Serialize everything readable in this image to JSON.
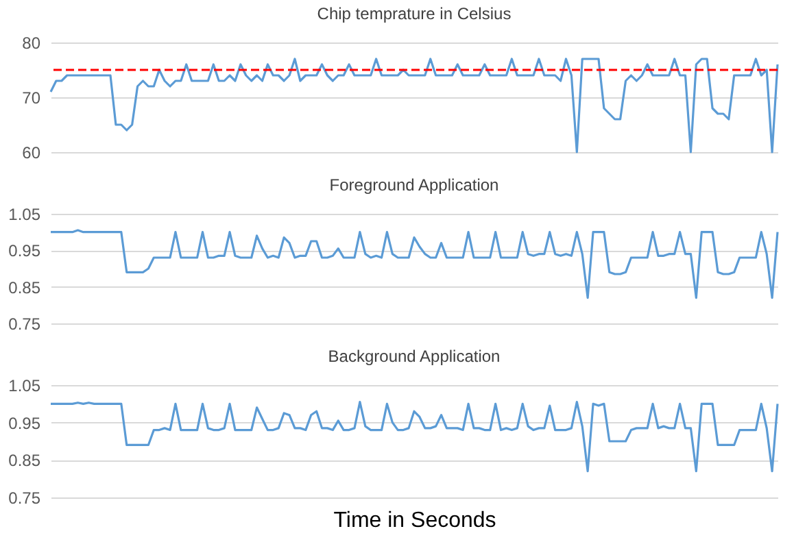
{
  "chart_data": [
    {
      "type": "line",
      "title": "Chip temprature in Celsius",
      "categories": [
        null,
        null,
        null,
        null,
        null,
        null,
        null,
        null,
        null,
        null,
        null,
        null,
        null,
        null,
        null,
        null,
        null,
        null,
        null,
        null,
        null,
        null,
        null,
        null,
        null,
        null,
        null,
        null,
        null,
        null,
        null,
        null,
        null,
        null,
        null,
        null,
        null,
        null,
        null,
        null,
        null,
        null,
        null,
        null,
        null,
        null,
        null,
        null,
        null,
        null,
        null,
        null,
        null,
        null,
        null,
        null,
        null,
        null,
        null,
        null,
        null,
        null,
        null,
        null,
        null,
        null,
        null,
        null,
        null,
        null,
        null,
        null,
        null,
        null,
        null,
        null,
        null,
        null,
        null,
        null,
        null,
        null,
        null,
        null,
        null,
        null,
        null,
        null,
        null,
        null,
        null,
        null,
        null,
        null,
        null,
        null,
        null,
        null,
        null,
        null,
        null,
        null,
        null,
        null,
        null,
        null,
        null,
        null,
        null,
        null,
        null,
        null,
        null,
        null,
        null,
        null,
        null,
        null,
        null,
        null,
        null,
        null,
        null,
        null,
        null,
        null,
        null,
        null,
        null,
        null,
        null,
        null,
        null,
        null,
        null
      ],
      "series": [
        {
          "color": "#5b9bd5",
          "values": [
            71,
            73,
            73,
            74,
            74,
            74,
            74,
            74,
            74,
            74,
            74,
            74,
            65,
            65,
            64,
            65,
            72,
            73,
            72,
            72,
            75,
            73,
            72,
            73,
            73,
            76,
            73,
            73,
            73,
            73,
            76,
            73,
            73,
            74,
            73,
            76,
            74,
            73,
            74,
            73,
            76,
            74,
            74,
            73,
            74,
            77,
            73,
            74,
            74,
            74,
            76,
            74,
            73,
            74,
            74,
            76,
            74,
            74,
            74,
            74,
            77,
            74,
            74,
            74,
            74,
            75,
            74,
            74,
            74,
            74,
            77,
            74,
            74,
            74,
            74,
            76,
            74,
            74,
            74,
            74,
            76,
            74,
            74,
            74,
            74,
            77,
            74,
            74,
            74,
            74,
            77,
            74,
            74,
            74,
            73,
            77,
            74,
            60,
            77,
            77,
            77,
            77,
            68,
            67,
            66,
            66,
            73,
            74,
            73,
            74,
            76,
            74,
            74,
            74,
            74,
            77,
            74,
            74,
            60,
            76,
            77,
            77,
            68,
            67,
            67,
            66,
            74,
            74,
            74,
            74,
            77,
            74,
            75,
            60,
            76
          ]
        }
      ],
      "ylim": [
        60,
        80
      ],
      "yticks": [
        60,
        70,
        80
      ],
      "grid": "y",
      "tick_labels": "y",
      "line_style": "solid",
      "ref_lines": [
        {
          "axis": "y",
          "value": 75,
          "color": "#ff0000",
          "line_style": "dashed"
        }
      ]
    },
    {
      "type": "line",
      "title": "Foreground Application",
      "categories": [
        null,
        null,
        null,
        null,
        null,
        null,
        null,
        null,
        null,
        null,
        null,
        null,
        null,
        null,
        null,
        null,
        null,
        null,
        null,
        null,
        null,
        null,
        null,
        null,
        null,
        null,
        null,
        null,
        null,
        null,
        null,
        null,
        null,
        null,
        null,
        null,
        null,
        null,
        null,
        null,
        null,
        null,
        null,
        null,
        null,
        null,
        null,
        null,
        null,
        null,
        null,
        null,
        null,
        null,
        null,
        null,
        null,
        null,
        null,
        null,
        null,
        null,
        null,
        null,
        null,
        null,
        null,
        null,
        null,
        null,
        null,
        null,
        null,
        null,
        null,
        null,
        null,
        null,
        null,
        null,
        null,
        null,
        null,
        null,
        null,
        null,
        null,
        null,
        null,
        null,
        null,
        null,
        null,
        null,
        null,
        null,
        null,
        null,
        null,
        null,
        null,
        null,
        null,
        null,
        null,
        null,
        null,
        null,
        null,
        null,
        null,
        null,
        null,
        null,
        null,
        null,
        null,
        null,
        null,
        null,
        null,
        null,
        null,
        null,
        null,
        null,
        null,
        null,
        null,
        null,
        null,
        null,
        null,
        null,
        null
      ],
      "series": [
        {
          "color": "#5b9bd5",
          "values": [
            1,
            1,
            1,
            1,
            1,
            1.005,
            1,
            1,
            1,
            1,
            1,
            1,
            1,
            1,
            0.89,
            0.89,
            0.89,
            0.89,
            0.9,
            0.93,
            0.93,
            0.93,
            0.93,
            1,
            0.93,
            0.93,
            0.93,
            0.93,
            1,
            0.93,
            0.93,
            0.935,
            0.935,
            1,
            0.935,
            0.93,
            0.93,
            0.93,
            0.99,
            0.955,
            0.93,
            0.935,
            0.93,
            0.985,
            0.97,
            0.93,
            0.935,
            0.935,
            0.975,
            0.975,
            0.93,
            0.93,
            0.935,
            0.955,
            0.93,
            0.93,
            0.93,
            1,
            0.94,
            0.93,
            0.935,
            0.93,
            1,
            0.94,
            0.93,
            0.93,
            0.93,
            0.985,
            0.96,
            0.94,
            0.93,
            0.93,
            0.97,
            0.93,
            0.93,
            0.93,
            0.93,
            1,
            0.93,
            0.93,
            0.93,
            0.93,
            1,
            0.93,
            0.93,
            0.93,
            0.93,
            1,
            0.94,
            0.935,
            0.94,
            0.94,
            1,
            0.94,
            0.935,
            0.94,
            0.935,
            1,
            0.94,
            0.82,
            1,
            1,
            1,
            0.89,
            0.885,
            0.885,
            0.89,
            0.93,
            0.93,
            0.93,
            0.93,
            1,
            0.935,
            0.935,
            0.94,
            0.94,
            1,
            0.94,
            0.94,
            0.82,
            1,
            1,
            1,
            0.89,
            0.885,
            0.885,
            0.89,
            0.93,
            0.93,
            0.93,
            0.93,
            1,
            0.94,
            0.82,
            1
          ]
        }
      ],
      "ylim": [
        0.75,
        1.05
      ],
      "yticks": [
        0.75,
        0.85,
        0.95,
        1.05
      ],
      "grid": "y",
      "tick_labels": "y",
      "line_style": "solid"
    },
    {
      "type": "line",
      "title": "Background Application",
      "xlabel": "Time in Seconds",
      "categories": [
        null,
        null,
        null,
        null,
        null,
        null,
        null,
        null,
        null,
        null,
        null,
        null,
        null,
        null,
        null,
        null,
        null,
        null,
        null,
        null,
        null,
        null,
        null,
        null,
        null,
        null,
        null,
        null,
        null,
        null,
        null,
        null,
        null,
        null,
        null,
        null,
        null,
        null,
        null,
        null,
        null,
        null,
        null,
        null,
        null,
        null,
        null,
        null,
        null,
        null,
        null,
        null,
        null,
        null,
        null,
        null,
        null,
        null,
        null,
        null,
        null,
        null,
        null,
        null,
        null,
        null,
        null,
        null,
        null,
        null,
        null,
        null,
        null,
        null,
        null,
        null,
        null,
        null,
        null,
        null,
        null,
        null,
        null,
        null,
        null,
        null,
        null,
        null,
        null,
        null,
        null,
        null,
        null,
        null,
        null,
        null,
        null,
        null,
        null,
        null,
        null,
        null,
        null,
        null,
        null,
        null,
        null,
        null,
        null,
        null,
        null,
        null,
        null,
        null,
        null,
        null,
        null,
        null,
        null,
        null,
        null,
        null,
        null,
        null,
        null,
        null,
        null,
        null,
        null,
        null,
        null,
        null,
        null,
        null,
        null
      ],
      "series": [
        {
          "color": "#5b9bd5",
          "values": [
            1,
            1,
            1,
            1,
            1,
            1.003,
            1,
            1.003,
            1,
            1,
            1,
            1,
            1,
            1,
            0.89,
            0.89,
            0.89,
            0.89,
            0.89,
            0.93,
            0.93,
            0.935,
            0.93,
            1,
            0.93,
            0.93,
            0.93,
            0.93,
            1,
            0.935,
            0.93,
            0.93,
            0.935,
            1,
            0.93,
            0.93,
            0.93,
            0.93,
            0.99,
            0.96,
            0.93,
            0.93,
            0.935,
            0.975,
            0.97,
            0.935,
            0.935,
            0.93,
            0.97,
            0.98,
            0.935,
            0.935,
            0.93,
            0.955,
            0.93,
            0.93,
            0.935,
            1.005,
            0.94,
            0.93,
            0.93,
            0.93,
            1,
            0.95,
            0.93,
            0.93,
            0.935,
            0.98,
            0.965,
            0.935,
            0.935,
            0.94,
            0.97,
            0.935,
            0.935,
            0.935,
            0.93,
            1,
            0.935,
            0.935,
            0.93,
            0.93,
            1,
            0.93,
            0.935,
            0.93,
            0.935,
            1,
            0.94,
            0.93,
            0.935,
            0.935,
            0.995,
            0.93,
            0.93,
            0.93,
            0.935,
            1.005,
            0.94,
            0.82,
            1,
            0.995,
            1,
            0.9,
            0.9,
            0.9,
            0.9,
            0.93,
            0.935,
            0.935,
            0.935,
            1,
            0.935,
            0.94,
            0.935,
            0.935,
            1,
            0.935,
            0.935,
            0.82,
            1,
            1,
            1,
            0.89,
            0.89,
            0.89,
            0.89,
            0.93,
            0.93,
            0.93,
            0.93,
            1,
            0.935,
            0.82,
            1
          ]
        }
      ],
      "ylim": [
        0.75,
        1.05
      ],
      "yticks": [
        0.75,
        0.85,
        0.95,
        1.05
      ],
      "grid": "y",
      "tick_labels": "y",
      "line_style": "solid"
    }
  ]
}
